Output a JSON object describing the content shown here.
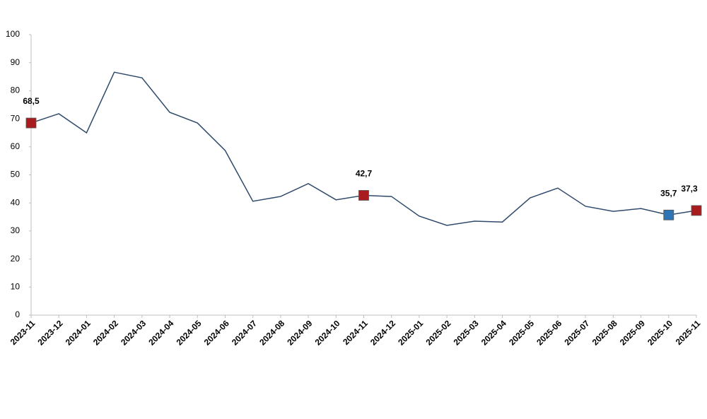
{
  "chart_data": {
    "type": "line",
    "categories": [
      "2023-11",
      "2023-12",
      "2024-01",
      "2024-02",
      "2024-03",
      "2024-04",
      "2024-05",
      "2024-06",
      "2024-07",
      "2024-08",
      "2024-09",
      "2024-10",
      "2024-11",
      "2024-12",
      "2025-01",
      "2025-02",
      "2025-03",
      "2025-04",
      "2025-05",
      "2025-06",
      "2025-07",
      "2025-08",
      "2025-09",
      "2025-10",
      "2025-11"
    ],
    "series": [
      {
        "color": "#2f4a6b",
        "values": [
          68.5,
          71.8,
          65.0,
          86.6,
          84.6,
          72.3,
          68.5,
          58.7,
          40.6,
          42.3,
          46.9,
          41.1,
          42.7,
          42.3,
          35.3,
          32.0,
          33.5,
          33.2,
          41.8,
          45.3,
          38.8,
          37.0,
          38.0,
          35.7,
          37.3
        ],
        "value_labels": [
          "68,5",
          null,
          null,
          null,
          null,
          null,
          null,
          null,
          null,
          null,
          null,
          null,
          "42,7",
          null,
          null,
          null,
          null,
          null,
          null,
          null,
          null,
          null,
          null,
          "35,7",
          "37,3"
        ],
        "marker_colors": [
          "#a81c1f",
          null,
          null,
          null,
          null,
          null,
          null,
          null,
          null,
          null,
          null,
          null,
          "#a81c1f",
          null,
          null,
          null,
          null,
          null,
          null,
          null,
          null,
          null,
          null,
          "#2e75b6",
          "#a81c1f"
        ]
      }
    ],
    "ylim": [
      0,
      100
    ],
    "yticks": [
      0,
      10,
      20,
      30,
      40,
      50,
      60,
      70,
      80,
      90,
      100
    ],
    "grid": false
  }
}
